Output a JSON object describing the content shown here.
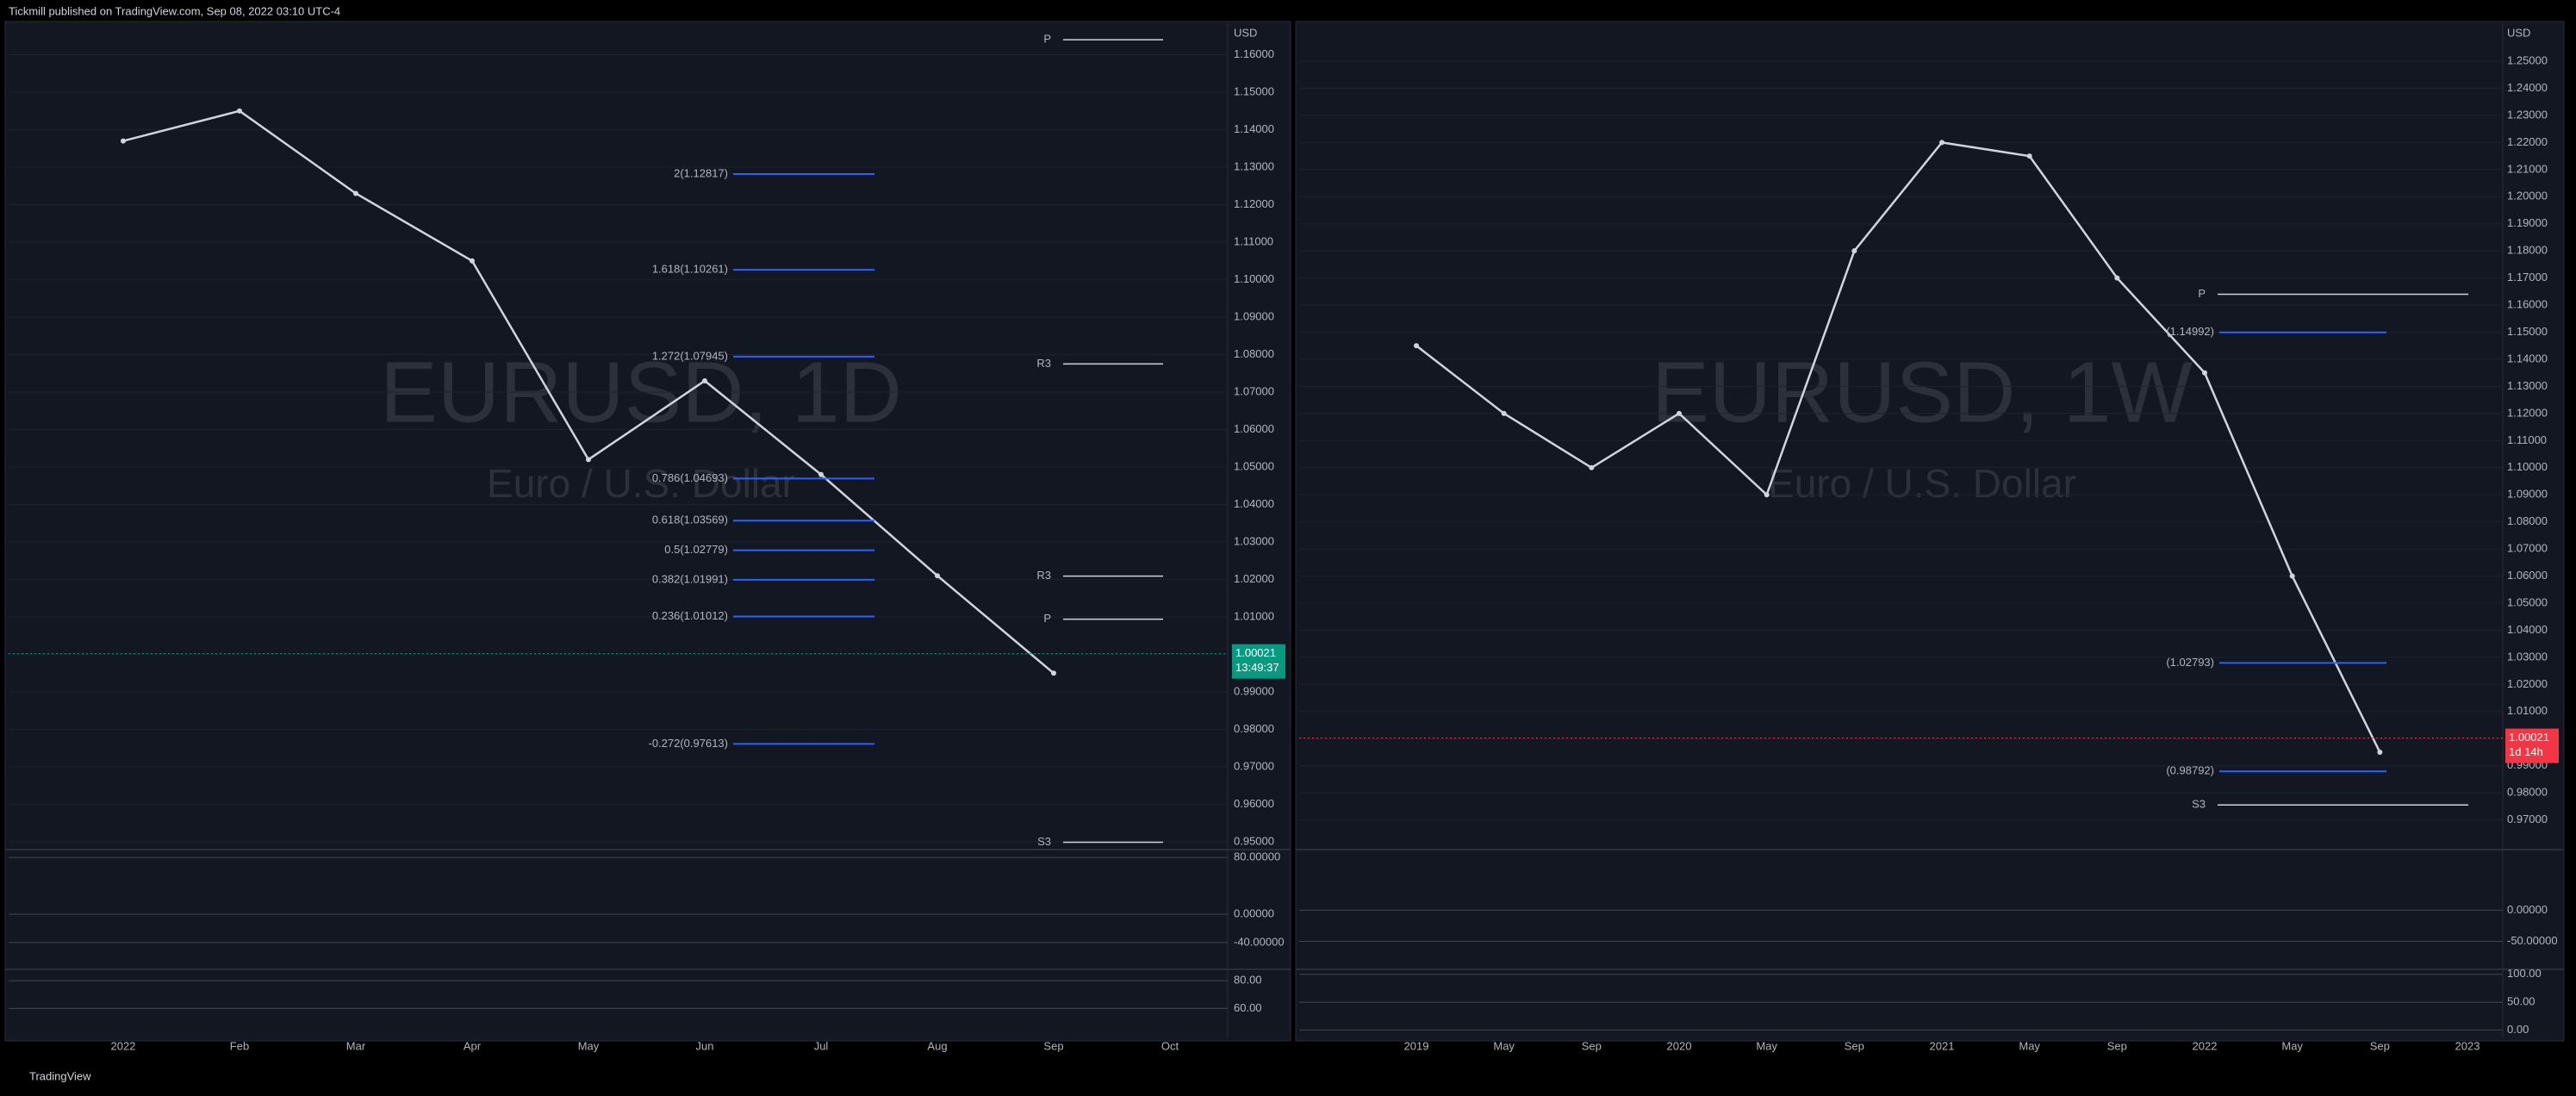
{
  "header": "Tickmill published on TradingView.com, Sep 08, 2022 03:10 UTC-4",
  "footer": "TradingView",
  "chart_data": [
    {
      "type": "line",
      "title": "EURUSD, 1D",
      "subtitle": "Euro / U.S. Dollar",
      "currency": "USD",
      "x": [
        "2022",
        "Feb",
        "Mar",
        "Apr",
        "May",
        "Jun",
        "Jul",
        "Aug",
        "Sep",
        "Oct"
      ],
      "series": [
        {
          "name": "EURUSD",
          "color": "#d1d4dc",
          "values": [
            1.137,
            1.145,
            1.123,
            1.105,
            1.052,
            1.073,
            1.048,
            1.021,
            0.995,
            null
          ]
        }
      ],
      "ylim": [
        0.9484,
        1.1684
      ],
      "yticks": [
        {
          "value": 1.16,
          "label": "1.16000"
        },
        {
          "value": 1.15,
          "label": "1.15000"
        },
        {
          "value": 1.14,
          "label": "1.14000"
        },
        {
          "value": 1.13,
          "label": "1.13000"
        },
        {
          "value": 1.12,
          "label": "1.12000"
        },
        {
          "value": 1.11,
          "label": "1.11000"
        },
        {
          "value": 1.1,
          "label": "1.10000"
        },
        {
          "value": 1.09,
          "label": "1.09000"
        },
        {
          "value": 1.08,
          "label": "1.08000"
        },
        {
          "value": 1.07,
          "label": "1.07000"
        },
        {
          "value": 1.06,
          "label": "1.06000"
        },
        {
          "value": 1.05,
          "label": "1.05000"
        },
        {
          "value": 1.04,
          "label": "1.04000"
        },
        {
          "value": 1.03,
          "label": "1.03000"
        },
        {
          "value": 1.02,
          "label": "1.02000"
        },
        {
          "value": 1.01,
          "label": "1.01000"
        },
        {
          "value": 1.0,
          "label": "1.00000"
        },
        {
          "value": 0.99,
          "label": "0.99000"
        },
        {
          "value": 0.98,
          "label": "0.98000"
        },
        {
          "value": 0.97,
          "label": "0.97000"
        },
        {
          "value": 0.96,
          "label": "0.96000"
        },
        {
          "value": 0.95,
          "label": "0.95000"
        }
      ],
      "price": 1.00021,
      "price_color": "#089981",
      "countdown": "13:49:37",
      "annotations": [
        {
          "value": 1.12817,
          "label": "2(1.12817)"
        },
        {
          "value": 1.10261,
          "label": "1.618(1.10261)"
        },
        {
          "value": 1.07945,
          "label": "1.272(1.07945)"
        },
        {
          "value": 1.04693,
          "label": "0.786(1.04693)"
        },
        {
          "value": 1.03569,
          "label": "0.618(1.03569)"
        },
        {
          "value": 1.02779,
          "label": "0.5(1.02779)"
        },
        {
          "value": 1.01991,
          "label": "0.382(1.01991)"
        },
        {
          "value": 1.01012,
          "label": "0.236(1.01012)"
        },
        {
          "value": 0.97613,
          "label": "-0.272(0.97613)"
        }
      ],
      "pivots": [
        {
          "value": 1.164,
          "label": "P"
        },
        {
          "value": 1.0775,
          "label": "R3"
        },
        {
          "value": 1.0209,
          "label": "R3"
        },
        {
          "value": 1.0094,
          "label": "P"
        },
        {
          "value": 0.9499,
          "label": "S3"
        }
      ],
      "panes": [
        {
          "ylim": [
            -73,
            88.7
          ],
          "yticks": [
            {
              "value": 80,
              "label": "80.00000"
            },
            {
              "value": 0,
              "label": "0.00000"
            },
            {
              "value": -40,
              "label": "-40.00000"
            }
          ]
        },
        {
          "ylim": [
            41,
            87
          ],
          "yticks": [
            {
              "value": 80,
              "label": "80.00"
            },
            {
              "value": 60,
              "label": "60.00"
            }
          ]
        }
      ]
    },
    {
      "type": "line",
      "title": "EURUSD, 1W",
      "subtitle": "Euro / U.S. Dollar",
      "currency": "USD",
      "x": [
        "2019",
        "May",
        "Sep",
        "2020",
        "May",
        "Sep",
        "2021",
        "May",
        "Sep",
        "2022",
        "May",
        "Sep",
        "2023"
      ],
      "series": [
        {
          "name": "EURUSD",
          "color": "#d1d4dc",
          "values": [
            1.145,
            1.12,
            1.1,
            1.12,
            1.09,
            1.18,
            1.22,
            1.215,
            1.17,
            1.135,
            1.06,
            0.995,
            null
          ]
        }
      ],
      "ylim": [
        0.9597,
        1.264
      ],
      "yticks": [
        {
          "value": 1.25,
          "label": "1.25000"
        },
        {
          "value": 1.24,
          "label": "1.24000"
        },
        {
          "value": 1.23,
          "label": "1.23000"
        },
        {
          "value": 1.22,
          "label": "1.22000"
        },
        {
          "value": 1.21,
          "label": "1.21000"
        },
        {
          "value": 1.2,
          "label": "1.20000"
        },
        {
          "value": 1.19,
          "label": "1.19000"
        },
        {
          "value": 1.18,
          "label": "1.18000"
        },
        {
          "value": 1.17,
          "label": "1.17000"
        },
        {
          "value": 1.16,
          "label": "1.16000"
        },
        {
          "value": 1.15,
          "label": "1.15000"
        },
        {
          "value": 1.14,
          "label": "1.14000"
        },
        {
          "value": 1.13,
          "label": "1.13000"
        },
        {
          "value": 1.12,
          "label": "1.12000"
        },
        {
          "value": 1.11,
          "label": "1.11000"
        },
        {
          "value": 1.1,
          "label": "1.10000"
        },
        {
          "value": 1.09,
          "label": "1.09000"
        },
        {
          "value": 1.08,
          "label": "1.08000"
        },
        {
          "value": 1.07,
          "label": "1.07000"
        },
        {
          "value": 1.06,
          "label": "1.06000"
        },
        {
          "value": 1.05,
          "label": "1.05000"
        },
        {
          "value": 1.04,
          "label": "1.04000"
        },
        {
          "value": 1.03,
          "label": "1.03000"
        },
        {
          "value": 1.02,
          "label": "1.02000"
        },
        {
          "value": 1.01,
          "label": "1.01000"
        },
        {
          "value": 1.0,
          "label": "1.00000"
        },
        {
          "value": 0.99,
          "label": "0.99000"
        },
        {
          "value": 0.98,
          "label": "0.98000"
        },
        {
          "value": 0.97,
          "label": "0.97000"
        }
      ],
      "price": 1.00021,
      "price_color": "#f23645",
      "countdown": "1d 14h",
      "annotations": [
        {
          "value": 1.14992,
          "label": "(1.14992)"
        },
        {
          "value": 1.02793,
          "label": "(1.02793)"
        },
        {
          "value": 0.98792,
          "label": "(0.98792)"
        }
      ],
      "pivots": [
        {
          "value": 1.164,
          "label": "P"
        },
        {
          "value": 0.9755,
          "label": "S3"
        }
      ],
      "panes": [
        {
          "ylim": [
            -89.5,
            94.7
          ],
          "yticks": [
            {
              "value": 0,
              "label": "0.00000"
            },
            {
              "value": -50,
              "label": "-50.00000"
            }
          ]
        },
        {
          "ylim": [
            -8.8,
            105.9
          ],
          "yticks": [
            {
              "value": 100,
              "label": "100.00"
            },
            {
              "value": 50,
              "label": "50.00"
            },
            {
              "value": 0,
              "label": "0.00"
            }
          ]
        }
      ]
    }
  ]
}
